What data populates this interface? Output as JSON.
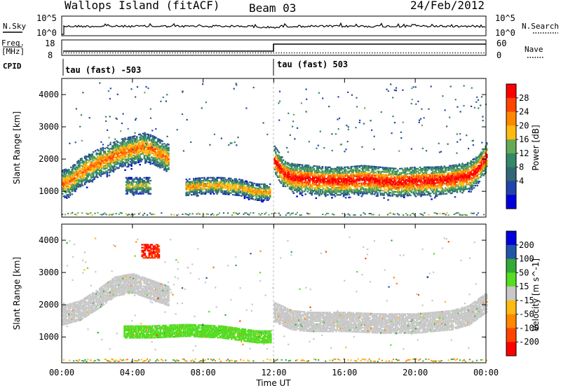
{
  "header": {
    "station": "Wallops Island (fitACF)",
    "beam": "Beam 03",
    "date": "24/Feb/2012"
  },
  "strips": {
    "nsky": {
      "label": "N.Sky",
      "right_label": "N.Search",
      "ticks_left": [
        "10^5",
        "10^0"
      ],
      "ticks_right": [
        "10^5",
        "10^0"
      ]
    },
    "freq": {
      "label_top": "Freq.",
      "label_unit": "[MHz]",
      "ticks_left": [
        "18",
        "8"
      ],
      "right_label": "Nave",
      "ticks_right": [
        "60",
        "0"
      ]
    },
    "cpid": {
      "label": "CPID",
      "segments": [
        "tau (fast) -503",
        "tau (fast) 503"
      ]
    }
  },
  "colors": {
    "power": [
      "#0000dd",
      "#2244aa",
      "#336677",
      "#338866",
      "#66aa55",
      "#ffbb11",
      "#ff8800",
      "#ff4400",
      "#ff0000"
    ],
    "velocity": [
      "#0000dd",
      "#2255aa",
      "#33aa33",
      "#55dd22",
      "#c8c8c8",
      "#ffbb11",
      "#ff8800",
      "#ff4400",
      "#ff0000"
    ],
    "ground_scatter": "#c8c8c8"
  },
  "chart_data": [
    {
      "type": "heatmap",
      "panel": "power",
      "xlabel": "",
      "ylabel": "Slant Range [km]",
      "xlim": [
        0,
        24
      ],
      "ylim": [
        200,
        4500
      ],
      "yticks": [
        "1000",
        "2000",
        "3000",
        "4000"
      ],
      "colorbar": {
        "label": "Power [dB]",
        "ticks": [
          "28",
          "24",
          "20",
          "16",
          "12",
          "8",
          "4"
        ],
        "range": [
          0,
          30
        ]
      },
      "features": [
        {
          "name": "main band 00-06",
          "x": [
            0.0,
            0.5,
            1.0,
            1.5,
            2.0,
            2.5,
            3.0,
            3.5,
            4.0,
            4.5,
            5.0,
            5.5,
            6.0
          ],
          "y_center": [
            1250,
            1350,
            1600,
            1750,
            1900,
            2000,
            2150,
            2250,
            2300,
            2400,
            2350,
            2200,
            2050
          ],
          "peak_db": 24
        },
        {
          "name": "patch 04-05",
          "x": [
            3.6,
            5.0
          ],
          "y_center": [
            1200,
            1200
          ],
          "peak_db": 18
        },
        {
          "name": "patch 07-11",
          "x": [
            7.0,
            8.0,
            9.0,
            10.0,
            11.0,
            11.8
          ],
          "y_center": [
            1150,
            1200,
            1200,
            1150,
            1000,
            1000
          ],
          "peak_db": 22
        },
        {
          "name": "main band 12-24",
          "x": [
            12.0,
            12.5,
            13.0,
            14.0,
            15.0,
            16.0,
            17.0,
            18.0,
            19.0,
            20.0,
            21.0,
            22.0,
            23.0,
            23.5,
            24.0
          ],
          "y_center": [
            2000,
            1600,
            1450,
            1400,
            1350,
            1350,
            1400,
            1350,
            1300,
            1350,
            1350,
            1400,
            1500,
            1700,
            2100
          ],
          "peak_db": 30
        }
      ]
    },
    {
      "type": "heatmap",
      "panel": "velocity",
      "xlabel": "Time UT",
      "ylabel": "Slant Range [km]",
      "xlim": [
        0,
        24
      ],
      "ylim": [
        200,
        4500
      ],
      "xticks": [
        "00:00",
        "04:00",
        "08:00",
        "12:00",
        "16:00",
        "20:00",
        "00:00"
      ],
      "yticks": [
        "1000",
        "2000",
        "3000",
        "4000"
      ],
      "colorbar": {
        "label": "Velocity [m s^-1]",
        "ticks": [
          "200",
          "100",
          "50",
          "15",
          "-15",
          "-50",
          "-100",
          "-200"
        ],
        "range": [
          -250,
          250
        ]
      },
      "features": [
        {
          "name": "ground scatter 00-06",
          "x": [
            0.0,
            1.0,
            2.0,
            3.0,
            4.0,
            5.0,
            6.0
          ],
          "y_center": [
            1700,
            1850,
            2200,
            2600,
            2700,
            2500,
            2300
          ],
          "velocity": 0
        },
        {
          "name": "green patch 04-11",
          "x": [
            3.5,
            5.0,
            7.0,
            9.0,
            11.0,
            11.8
          ],
          "y_center": [
            1200,
            1200,
            1250,
            1200,
            1050,
            1050
          ],
          "velocity": 40
        },
        {
          "name": "ground scatter 12-24",
          "x": [
            12.0,
            13.0,
            14.0,
            16.0,
            18.0,
            20.0,
            22.0,
            23.0,
            24.0
          ],
          "y_center": [
            1800,
            1550,
            1500,
            1500,
            1450,
            1450,
            1550,
            1700,
            2100
          ],
          "velocity": 0
        },
        {
          "name": "red echo 05:00",
          "x": [
            4.5,
            5.5
          ],
          "y_center": [
            3700,
            3700
          ],
          "velocity": -200
        }
      ]
    }
  ]
}
